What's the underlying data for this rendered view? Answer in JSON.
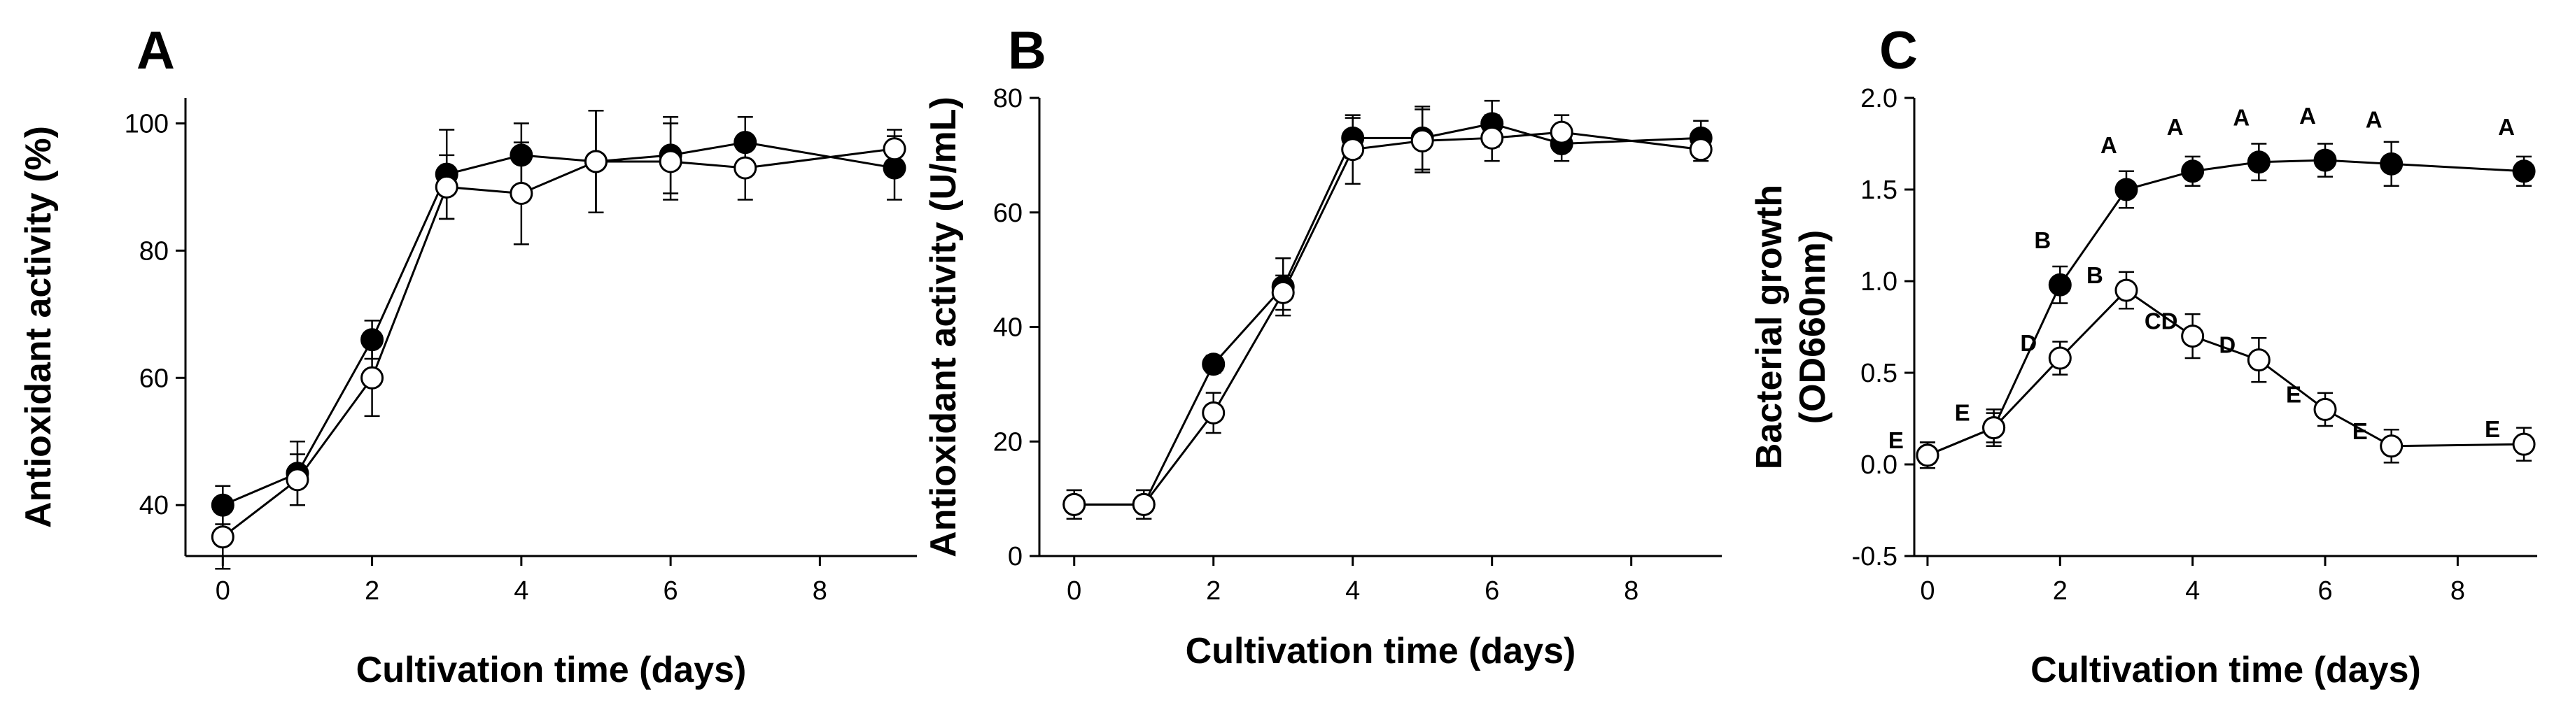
{
  "chart_data": [
    {
      "type": "line",
      "panel": "A",
      "title": "",
      "xlabel": "Cultivation time (days)",
      "ylabel": "Antioxidant activity (%)",
      "xlim": [
        -0.5,
        9.3
      ],
      "ylim": [
        32,
        104
      ],
      "xticks": [
        0,
        2,
        4,
        6,
        8
      ],
      "yticks": [
        40,
        60,
        80,
        100
      ],
      "grid": false,
      "legend": "none",
      "series": [
        {
          "name": "filled circles",
          "marker": "filled",
          "x": [
            0,
            1,
            2,
            3,
            4,
            5,
            6,
            7,
            9
          ],
          "y": [
            40,
            45,
            66,
            92,
            95,
            94,
            95,
            97,
            93
          ],
          "err": [
            3,
            5,
            3,
            7,
            5,
            8,
            6,
            4,
            5
          ]
        },
        {
          "name": "open circles",
          "marker": "open",
          "x": [
            0,
            1,
            2,
            3,
            4,
            5,
            6,
            7,
            9
          ],
          "y": [
            35,
            44,
            60,
            90,
            89,
            94,
            94,
            93,
            96
          ],
          "err": [
            5,
            4,
            6,
            5,
            8,
            8,
            6,
            5,
            3
          ]
        }
      ]
    },
    {
      "type": "line",
      "panel": "B",
      "title": "",
      "xlabel": "Cultivation time (days)",
      "ylabel": "Antioxidant activity (U/mL)",
      "xlim": [
        -0.5,
        9.3
      ],
      "ylim": [
        0,
        80
      ],
      "xticks": [
        0,
        2,
        4,
        6,
        8
      ],
      "yticks": [
        0,
        20,
        40,
        60,
        80
      ],
      "grid": false,
      "legend": "none",
      "series": [
        {
          "name": "filled circles",
          "marker": "filled",
          "x": [
            0,
            1,
            2,
            3,
            4,
            5,
            6,
            7,
            9
          ],
          "y": [
            9,
            9,
            33.5,
            47,
            73,
            73,
            75.5,
            72,
            73
          ],
          "err": [
            2.5,
            2.5,
            1.5,
            5,
            3.5,
            5.5,
            4,
            3,
            3
          ]
        },
        {
          "name": "open circles",
          "marker": "open",
          "x": [
            0,
            1,
            2,
            3,
            4,
            5,
            6,
            7,
            9
          ],
          "y": [
            9,
            9,
            25,
            46,
            71,
            72.5,
            73,
            74,
            71
          ],
          "err": [
            2.5,
            2.5,
            3.5,
            3,
            6,
            5.5,
            4,
            3,
            2
          ]
        }
      ]
    },
    {
      "type": "line",
      "panel": "C",
      "title": "",
      "xlabel": "Cultivation time (days)",
      "ylabel": [
        "Bacterial growth",
        "(OD660nm)"
      ],
      "xlim": [
        -0.2,
        9.2
      ],
      "ylim": [
        -0.5,
        2.0
      ],
      "xticks": [
        0,
        2,
        4,
        6,
        8
      ],
      "yticks": [
        -0.5,
        0.0,
        0.5,
        1.0,
        1.5,
        2.0
      ],
      "ytick_labels": [
        "-0.5",
        "0.0",
        "0.5",
        "1.0",
        "1.5",
        "2.0"
      ],
      "grid": false,
      "legend": "none",
      "series": [
        {
          "name": "filled circles",
          "marker": "filled",
          "x": [
            0,
            1,
            2,
            3,
            4,
            5,
            6,
            7,
            9
          ],
          "y": [
            0.05,
            0.2,
            0.98,
            1.5,
            1.6,
            1.65,
            1.66,
            1.64,
            1.6
          ],
          "err": [
            0.07,
            0.08,
            0.1,
            0.1,
            0.08,
            0.1,
            0.09,
            0.12,
            0.08
          ],
          "labels": [
            "",
            "",
            "B",
            "A",
            "A",
            "A",
            "A",
            "A",
            "A"
          ]
        },
        {
          "name": "open circles",
          "marker": "open",
          "x": [
            0,
            1,
            2,
            3,
            4,
            5,
            6,
            7,
            9
          ],
          "y": [
            0.05,
            0.2,
            0.58,
            0.95,
            0.7,
            0.57,
            0.3,
            0.1,
            0.11
          ],
          "err": [
            0.07,
            0.1,
            0.09,
            0.1,
            0.12,
            0.12,
            0.09,
            0.09,
            0.09
          ],
          "labels": [
            "E",
            "E",
            "D",
            "B",
            "CD",
            "D",
            "E",
            "E",
            "E"
          ]
        }
      ]
    }
  ]
}
